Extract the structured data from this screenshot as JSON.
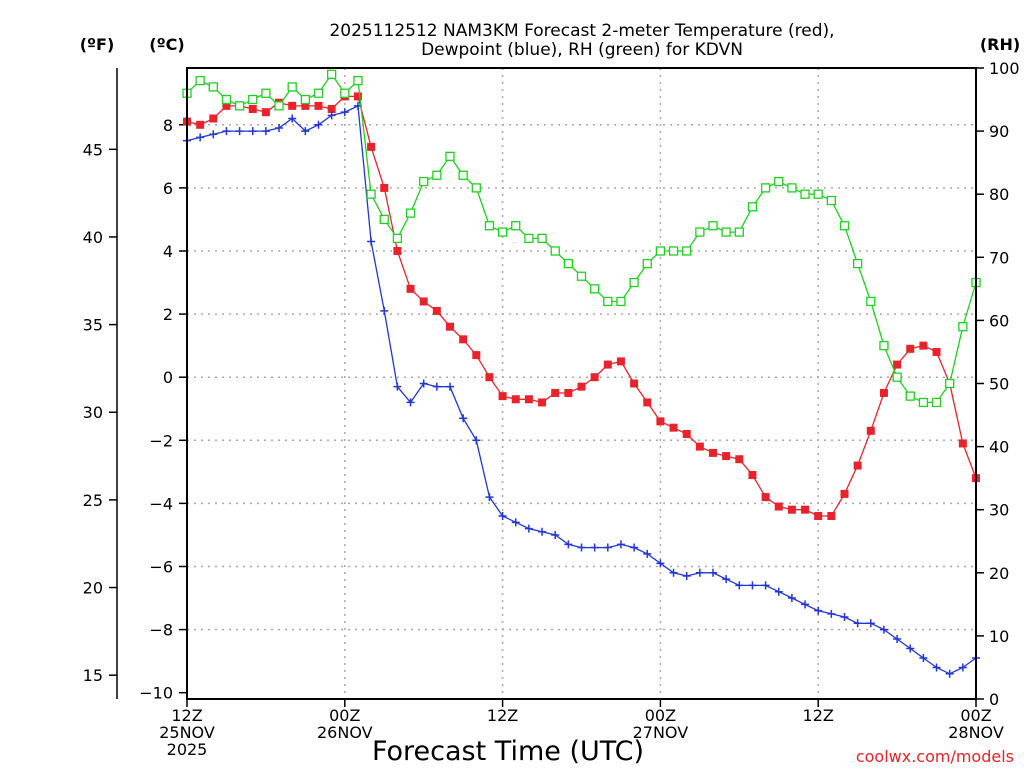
{
  "chart_data": {
    "type": "line",
    "title_lines": [
      "2025112512 NAM3KM Forecast 2-meter Temperature (red),",
      "Dewpoint (blue), RH (green) for KDVN"
    ],
    "xlabel": "Forecast Time (UTC)",
    "credit": "coolwx.com/models",
    "axes": {
      "fahrenheit_label": "(ºF)",
      "celsius_label": "(ºC)",
      "rh_label": "(RH)",
      "celsius_range": [
        -10.2,
        9.8
      ],
      "rh_range": [
        0,
        100
      ],
      "celsius_ticks": [
        8,
        6,
        4,
        2,
        0,
        -2,
        -4,
        -6,
        -8,
        -10
      ],
      "fahrenheit_ticks": [
        45,
        40,
        35,
        30,
        25,
        20,
        15
      ],
      "rh_ticks": [
        100,
        90,
        80,
        70,
        60,
        50,
        40,
        30,
        20,
        10,
        0
      ],
      "hour_range": [
        0,
        60
      ],
      "grid": true
    },
    "x_ticks": [
      {
        "hour": 0,
        "lines": [
          "12Z",
          "25NOV",
          "2025"
        ]
      },
      {
        "hour": 12,
        "lines": [
          "00Z",
          "26NOV"
        ]
      },
      {
        "hour": 24,
        "lines": [
          "12Z"
        ]
      },
      {
        "hour": 36,
        "lines": [
          "00Z",
          "27NOV"
        ]
      },
      {
        "hour": 48,
        "lines": [
          "12Z"
        ]
      },
      {
        "hour": 60,
        "lines": [
          "00Z",
          "28NOV"
        ]
      }
    ],
    "hours": [
      0,
      1,
      2,
      3,
      4,
      5,
      6,
      7,
      8,
      9,
      10,
      11,
      12,
      13,
      14,
      15,
      16,
      17,
      18,
      19,
      20,
      21,
      22,
      23,
      24,
      25,
      26,
      27,
      28,
      29,
      30,
      31,
      32,
      33,
      34,
      35,
      36,
      37,
      38,
      39,
      40,
      41,
      42,
      43,
      44,
      45,
      46,
      47,
      48,
      49,
      50,
      51,
      52,
      53,
      54,
      55,
      56,
      57,
      58,
      59,
      60
    ],
    "series": [
      {
        "name": "Temperature",
        "color": "#e8232b",
        "unit": "°C",
        "marker": "filled-square",
        "values": [
          8.1,
          8.0,
          8.2,
          8.6,
          8.6,
          8.5,
          8.4,
          8.7,
          8.6,
          8.6,
          8.6,
          8.5,
          8.9,
          8.9,
          7.3,
          6.0,
          4.0,
          2.8,
          2.4,
          2.1,
          1.6,
          1.2,
          0.7,
          0.0,
          -0.6,
          -0.7,
          -0.7,
          -0.8,
          -0.5,
          -0.5,
          -0.3,
          0.0,
          0.4,
          0.5,
          -0.2,
          -0.8,
          -1.4,
          -1.6,
          -1.8,
          -2.2,
          -2.4,
          -2.5,
          -2.6,
          -3.1,
          -3.8,
          -4.1,
          -4.2,
          -4.2,
          -4.4,
          -4.4,
          -3.7,
          -2.8,
          -1.7,
          -0.5,
          0.4,
          0.9,
          1.0,
          0.8,
          -0.2,
          -2.1,
          -3.2
        ]
      },
      {
        "name": "Dewpoint",
        "color": "#2136d6",
        "unit": "°C",
        "marker": "plus",
        "values": [
          7.5,
          7.6,
          7.7,
          7.8,
          7.8,
          7.8,
          7.8,
          7.9,
          8.2,
          7.8,
          8.0,
          8.3,
          8.4,
          8.6,
          4.3,
          2.1,
          -0.3,
          -0.8,
          -0.2,
          -0.3,
          -0.3,
          -1.3,
          -2.0,
          -3.8,
          -4.4,
          -4.6,
          -4.8,
          -4.9,
          -5.0,
          -5.3,
          -5.4,
          -5.4,
          -5.4,
          -5.3,
          -5.4,
          -5.6,
          -5.9,
          -6.2,
          -6.3,
          -6.2,
          -6.2,
          -6.4,
          -6.6,
          -6.6,
          -6.6,
          -6.8,
          -7.0,
          -7.2,
          -7.4,
          -7.5,
          -7.6,
          -7.8,
          -7.8,
          -8.0,
          -8.3,
          -8.6,
          -8.9,
          -9.2,
          -9.4,
          -9.2,
          -8.9
        ]
      },
      {
        "name": "RH",
        "color": "#1fd020",
        "unit": "%",
        "marker": "open-square",
        "values": [
          96,
          98,
          97,
          95,
          94,
          95,
          96,
          94,
          97,
          95,
          96,
          99,
          96,
          98,
          80,
          76,
          73,
          77,
          82,
          83,
          86,
          83,
          81,
          75,
          74,
          75,
          73,
          73,
          71,
          69,
          67,
          65,
          63,
          63,
          66,
          69,
          71,
          71,
          71,
          74,
          75,
          74,
          74,
          78,
          81,
          82,
          81,
          80,
          80,
          79,
          75,
          69,
          63,
          56,
          51,
          48,
          47,
          47,
          50,
          59,
          66
        ]
      }
    ]
  }
}
